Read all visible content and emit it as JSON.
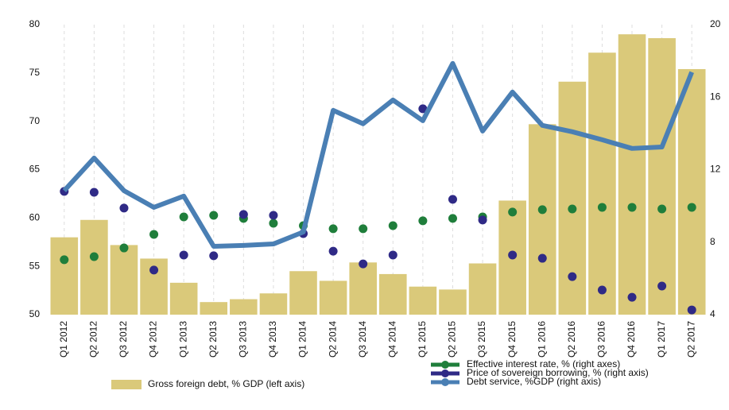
{
  "chart_data": {
    "type": "combo",
    "categories": [
      "Q1 2012",
      "Q2 2012",
      "Q3 2012",
      "Q4 2012",
      "Q1 2013",
      "Q2 2013",
      "Q3 2013",
      "Q4 2013",
      "Q1 2014",
      "Q2 2014",
      "Q3 2014",
      "Q4 2014",
      "Q1 2015",
      "Q2 2015",
      "Q3 2015",
      "Q4 2015",
      "Q1 2016",
      "Q2 2016",
      "Q3 2016",
      "Q4 2016",
      "Q1 2017",
      "Q2 2017"
    ],
    "ylim": [
      50,
      80
    ],
    "yticks": [
      50,
      55,
      60,
      65,
      70,
      75,
      80
    ],
    "y2lim": [
      4,
      20
    ],
    "y2ticks": [
      4,
      8,
      12,
      16,
      20
    ],
    "grid": true,
    "series": [
      {
        "name": "Gross foreign debt, % GDP (left axis)",
        "type": "bar",
        "color": "#dac97a",
        "values": [
          58.0,
          59.8,
          57.2,
          55.8,
          53.3,
          51.3,
          51.6,
          52.2,
          54.5,
          53.5,
          55.4,
          54.2,
          52.9,
          52.6,
          55.3,
          61.8,
          69.7,
          74.1,
          77.1,
          79.0,
          78.6,
          75.4
        ]
      },
      {
        "name": "Effective interest rate, % (right axes)",
        "type": "scatter",
        "axis": "y2",
        "color": "#1f7e3b",
        "values": [
          7.03,
          7.2,
          7.68,
          8.43,
          9.39,
          9.48,
          9.31,
          9.04,
          8.91,
          8.74,
          8.74,
          8.91,
          9.18,
          9.31,
          9.39,
          9.66,
          9.79,
          9.83,
          9.92,
          9.92,
          9.83,
          9.92
        ]
      },
      {
        "name": "Price of sovereign borrowing, % (right axis)",
        "type": "scatter",
        "axis": "y2",
        "color": "#2f2a86",
        "values": [
          10.8,
          10.75,
          9.88,
          6.46,
          7.29,
          7.25,
          9.53,
          9.48,
          8.47,
          7.5,
          6.8,
          7.29,
          15.36,
          10.36,
          9.22,
          7.29,
          7.11,
          6.1,
          5.36,
          4.96,
          5.58,
          4.26
        ]
      },
      {
        "name": "Debt service, %GDP (right axis)",
        "type": "line",
        "axis": "y2",
        "color": "#4a7fb4",
        "values": [
          10.84,
          12.64,
          10.84,
          9.92,
          10.54,
          7.77,
          7.82,
          7.9,
          8.56,
          15.27,
          14.53,
          15.84,
          14.7,
          17.86,
          14.13,
          16.28,
          14.44,
          14.09,
          13.65,
          13.17,
          13.25,
          17.38
        ]
      }
    ]
  }
}
